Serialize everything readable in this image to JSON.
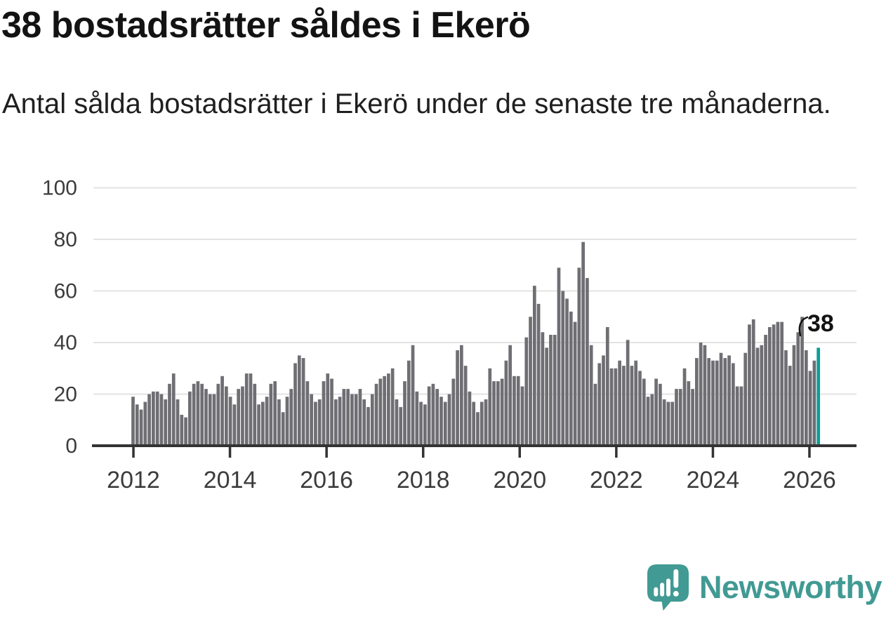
{
  "header": {
    "title": "38 bostadsrätter såldes i Ekerö",
    "subtitle": "Antal sålda bostadsrätter i Ekerö under de senaste tre månaderna."
  },
  "branding": {
    "wordmark": "Newsworthy",
    "logo_icon": "newsworthy-speech-bubble-bar-chart-icon"
  },
  "colors": {
    "bar": "#6f6e73",
    "highlight": "#0aa096",
    "grid": "#e3e3e3",
    "axis": "#333333",
    "tick_text": "#3c3c3c",
    "annotation": "#131313",
    "logo": "#419a93",
    "background": "#ffffff"
  },
  "chart_data": {
    "type": "bar",
    "title": "38 bostadsrätter såldes i Ekerö",
    "subtitle": "Antal sålda bostadsrätter i Ekerö under de senaste tre månaderna.",
    "xlabel": "",
    "ylabel": "",
    "x_period": "monthly",
    "x_start": "2012-01",
    "x_end": "2026-02",
    "x_tick_labels": [
      "2012",
      "2014",
      "2016",
      "2018",
      "2020",
      "2022",
      "2024",
      "2026"
    ],
    "y_ticks": [
      0,
      20,
      40,
      60,
      80,
      100
    ],
    "ylim": [
      0,
      100
    ],
    "grid": true,
    "legend": false,
    "highlight_last": true,
    "last_value_label": "38",
    "last_value": 38,
    "values": [
      19,
      16,
      14,
      17,
      20,
      21,
      21,
      20,
      18,
      24,
      28,
      18,
      12,
      11,
      21,
      24,
      25,
      24,
      22,
      20,
      20,
      24,
      27,
      23,
      19,
      16,
      22,
      23,
      28,
      28,
      24,
      16,
      17,
      19,
      24,
      25,
      18,
      13,
      19,
      22,
      32,
      35,
      34,
      25,
      20,
      17,
      18,
      25,
      28,
      26,
      18,
      19,
      22,
      22,
      20,
      20,
      22,
      18,
      15,
      20,
      24,
      26,
      27,
      28,
      30,
      18,
      15,
      25,
      33,
      39,
      21,
      17,
      16,
      23,
      24,
      22,
      19,
      17,
      20,
      26,
      37,
      39,
      31,
      21,
      17,
      13,
      17,
      18,
      30,
      25,
      25,
      26,
      33,
      39,
      27,
      27,
      23,
      42,
      50,
      62,
      55,
      44,
      38,
      43,
      43,
      69,
      60,
      57,
      52,
      48,
      69,
      79,
      65,
      39,
      24,
      32,
      35,
      46,
      30,
      30,
      33,
      31,
      41,
      31,
      33,
      29,
      26,
      19,
      20,
      26,
      24,
      18,
      17,
      17,
      22,
      22,
      30,
      25,
      22,
      34,
      40,
      39,
      34,
      33,
      33,
      36,
      34,
      35,
      32,
      23,
      23,
      36,
      47,
      49,
      38,
      39,
      43,
      46,
      47,
      48,
      48,
      37,
      31,
      39,
      44,
      50,
      37,
      29,
      33,
      38
    ]
  }
}
